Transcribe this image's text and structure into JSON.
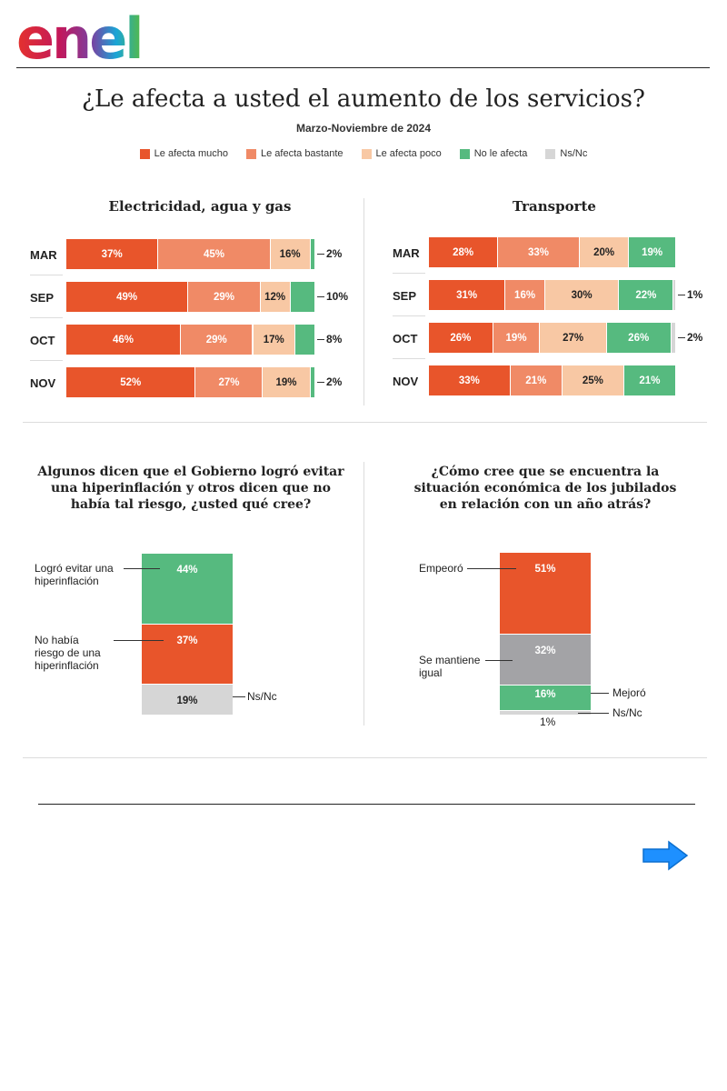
{
  "brand": {
    "logo_text": "enel"
  },
  "header": {
    "title": "¿Le afecta a usted el aumento de los servicios?",
    "subtitle": "Marzo-Noviembre de 2024"
  },
  "legend": [
    {
      "label": "Le afecta mucho",
      "color": "#e8552b"
    },
    {
      "label": "Le afecta bastante",
      "color": "#f08a66"
    },
    {
      "label": "Le afecta poco",
      "color": "#f8c8a4"
    },
    {
      "label": "No le afecta",
      "color": "#56ba7f"
    },
    {
      "label": "Ns/Nc",
      "color": "#d6d6d6"
    }
  ],
  "chart_data": [
    {
      "type": "bar",
      "orientation": "horizontal-stacked",
      "title": "Electricidad, agua y gas",
      "categories": [
        "MAR",
        "SEP",
        "OCT",
        "NOV"
      ],
      "series": [
        {
          "name": "Le afecta mucho",
          "values": [
            37,
            49,
            46,
            52
          ]
        },
        {
          "name": "Le afecta bastante",
          "values": [
            45,
            29,
            29,
            27
          ]
        },
        {
          "name": "Le afecta poco",
          "values": [
            16,
            12,
            17,
            19
          ]
        },
        {
          "name": "No le afecta",
          "values": [
            2,
            10,
            8,
            2
          ]
        }
      ]
    },
    {
      "type": "bar",
      "orientation": "horizontal-stacked",
      "title": "Transporte",
      "categories": [
        "MAR",
        "SEP",
        "OCT",
        "NOV"
      ],
      "series": [
        {
          "name": "Le afecta mucho",
          "values": [
            28,
            31,
            26,
            33
          ]
        },
        {
          "name": "Le afecta bastante",
          "values": [
            33,
            16,
            19,
            21
          ]
        },
        {
          "name": "Le afecta poco",
          "values": [
            20,
            30,
            27,
            25
          ]
        },
        {
          "name": "No le afecta",
          "values": [
            19,
            22,
            26,
            21
          ]
        },
        {
          "name": "Ns/Nc",
          "values": [
            0,
            1,
            2,
            0
          ]
        }
      ]
    },
    {
      "type": "bar",
      "orientation": "vertical-stacked",
      "title": "Algunos dicen que el Gobierno logró evitar una hiperinflación y otros dicen que no había tal riesgo, ¿usted qué cree?",
      "segments": [
        {
          "label": "Logró evitar una hiperinflación",
          "value": 44,
          "color": "#56ba7f"
        },
        {
          "label": "No había riesgo de una hiperinflación",
          "value": 37,
          "color": "#e8552b"
        },
        {
          "label": "Ns/Nc",
          "value": 19,
          "color": "#d6d6d6"
        }
      ]
    },
    {
      "type": "bar",
      "orientation": "vertical-stacked",
      "title": "¿Cómo cree que se encuentra la situación económica de los jubilados en relación con un año atrás?",
      "segments": [
        {
          "label": "Empeoró",
          "value": 51,
          "color": "#e8552b"
        },
        {
          "label": "Se mantiene igual",
          "value": 32,
          "color": "#a3a3a6"
        },
        {
          "label": "Mejoró",
          "value": 16,
          "color": "#56ba7f"
        },
        {
          "label": "Ns/Nc",
          "value": 1,
          "color": "#d6d6d6"
        }
      ]
    }
  ],
  "q1": {
    "title_lines": [
      "Algunos dicen que el Gobierno logró evitar",
      "una hiperinflación y otros dicen que no",
      "había tal riesgo, ¿usted qué cree?"
    ],
    "ann_lines": [
      [
        "Logró evitar una",
        "hiperinflación"
      ],
      [
        "No había",
        "riesgo de una",
        "hiperinflación"
      ],
      [
        "Ns/Nc"
      ]
    ]
  },
  "q2": {
    "title_lines": [
      "¿Cómo cree que se encuentra la",
      "situación económica de los jubilados",
      "en relación con un año atrás?"
    ],
    "ann_lines": [
      [
        "Empeoró"
      ],
      [
        "Se mantiene",
        "igual"
      ],
      [
        "Mejoró"
      ],
      [
        "Ns/Nc"
      ]
    ]
  },
  "nav": {
    "next_icon": "arrow-right-icon",
    "arrow_color": "#1e90ff"
  }
}
